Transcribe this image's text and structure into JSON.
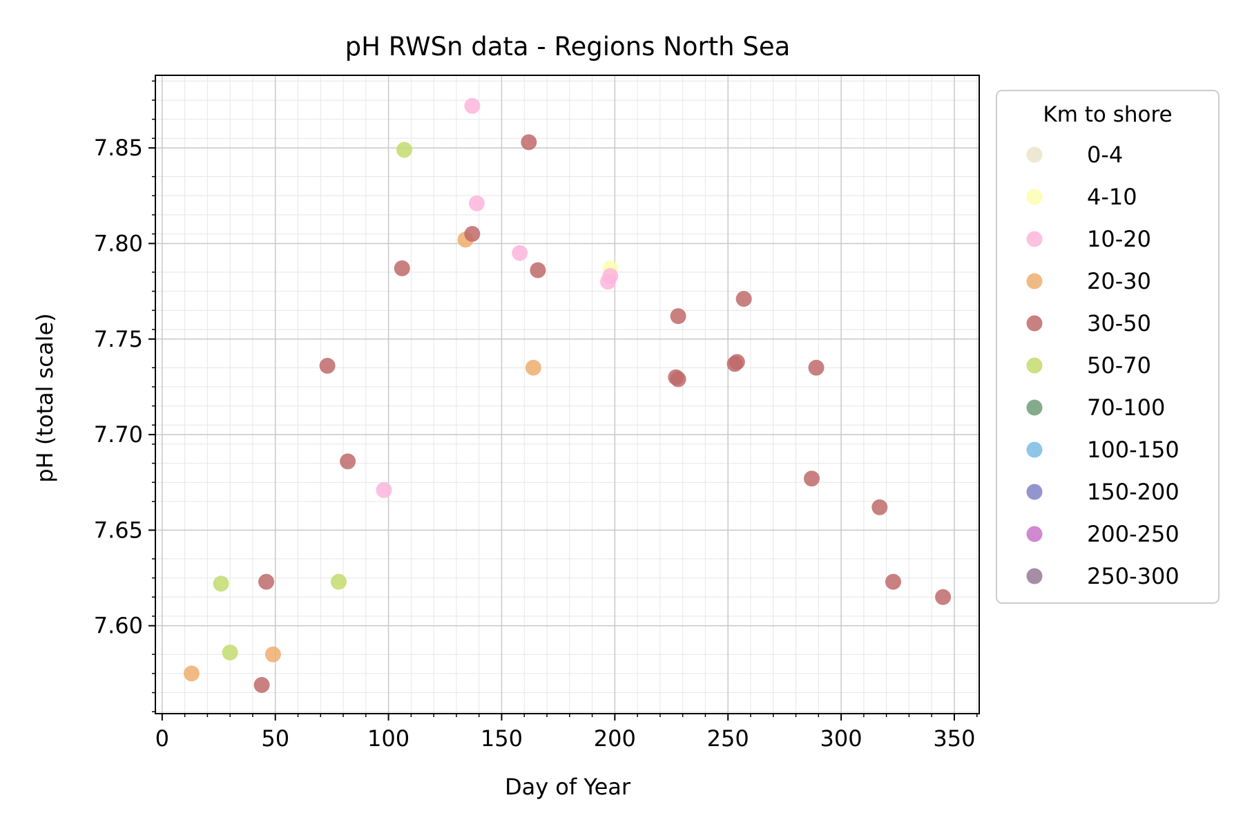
{
  "chart_data": {
    "type": "scatter",
    "title": "pH RWSn data - Regions North Sea",
    "xlabel": "Day of Year",
    "ylabel": "pH (total scale)",
    "xlim": [
      -3,
      361
    ],
    "ylim": [
      7.554,
      7.888
    ],
    "x_ticks": [
      0,
      50,
      100,
      150,
      200,
      250,
      300,
      350
    ],
    "y_ticks": [
      7.6,
      7.65,
      7.7,
      7.75,
      7.8,
      7.85
    ],
    "x_tick_labels": [
      "0",
      "50",
      "100",
      "150",
      "200",
      "250",
      "300",
      "350"
    ],
    "y_tick_labels": [
      "7.60",
      "7.65",
      "7.70",
      "7.75",
      "7.80",
      "7.85"
    ],
    "grid": true,
    "legend": {
      "title": "Km to shore",
      "placement": "outside-right",
      "entries": [
        {
          "label": "0-4",
          "color": "#ebe3c9"
        },
        {
          "label": "4-10",
          "color": "#fdfdb0"
        },
        {
          "label": "10-20",
          "color": "#fdb5dc"
        },
        {
          "label": "20-30",
          "color": "#efae6f"
        },
        {
          "label": "30-50",
          "color": "#c06a6a"
        },
        {
          "label": "50-70",
          "color": "#c3da6e"
        },
        {
          "label": "70-100",
          "color": "#6e9c76"
        },
        {
          "label": "100-150",
          "color": "#7abbe4"
        },
        {
          "label": "150-200",
          "color": "#7f83c6"
        },
        {
          "label": "200-250",
          "color": "#c874c9"
        },
        {
          "label": "250-300",
          "color": "#957a95"
        }
      ]
    },
    "series": [
      {
        "name": "4-10",
        "color": "#fdfdb0",
        "points": [
          [
            198,
            7.787
          ]
        ]
      },
      {
        "name": "10-20",
        "color": "#fdb5dc",
        "points": [
          [
            137,
            7.872
          ],
          [
            139,
            7.821
          ],
          [
            158,
            7.795
          ],
          [
            197,
            7.78
          ],
          [
            198,
            7.783
          ],
          [
            98,
            7.671
          ]
        ]
      },
      {
        "name": "20-30",
        "color": "#efae6f",
        "points": [
          [
            134,
            7.802
          ],
          [
            164,
            7.735
          ],
          [
            13,
            7.575
          ],
          [
            49,
            7.585
          ]
        ]
      },
      {
        "name": "30-50",
        "color": "#c06a6a",
        "points": [
          [
            162,
            7.853
          ],
          [
            137,
            7.805
          ],
          [
            106,
            7.787
          ],
          [
            166,
            7.786
          ],
          [
            228,
            7.762
          ],
          [
            257,
            7.771
          ],
          [
            73,
            7.736
          ],
          [
            227,
            7.73
          ],
          [
            228,
            7.729
          ],
          [
            253,
            7.737
          ],
          [
            254,
            7.738
          ],
          [
            289,
            7.735
          ],
          [
            82,
            7.686
          ],
          [
            287,
            7.677
          ],
          [
            317,
            7.662
          ],
          [
            46,
            7.623
          ],
          [
            323,
            7.623
          ],
          [
            345,
            7.615
          ],
          [
            44,
            7.569
          ]
        ]
      },
      {
        "name": "50-70",
        "color": "#c3da6e",
        "points": [
          [
            107,
            7.849
          ],
          [
            26,
            7.622
          ],
          [
            78,
            7.623
          ],
          [
            30,
            7.586
          ]
        ]
      }
    ]
  }
}
